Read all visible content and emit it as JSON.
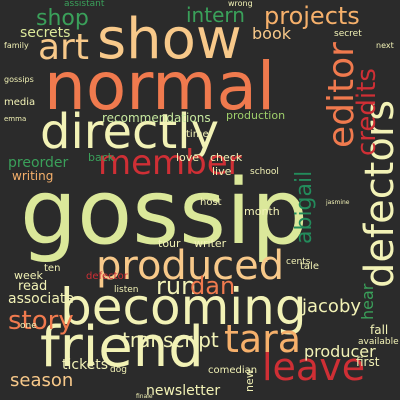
{
  "palette": {
    "background": "#2b2b2b",
    "cream": "#f2f2b6",
    "lime": "#dbe89a",
    "orange": "#f07a4e",
    "red": "#cf2f35",
    "peach": "#f6b06b",
    "light_orange": "#f8c98a",
    "green": "#3aa05a",
    "teal": "#238b5b",
    "olive": "#9ecf6b",
    "mint": "#c7e9a0"
  },
  "words": {
    "gossip": "gossip",
    "normal": "normal",
    "show": "show",
    "directly": "directly",
    "becoming": "becoming",
    "friend": "friend",
    "produced": "produced",
    "defectors": "defectors",
    "editor": "editor",
    "member": "member",
    "tara": "tara",
    "leave": "leave",
    "art": "art",
    "credits": "credits",
    "abigail": "abigail",
    "projects": "projects",
    "story": "story",
    "run": "run",
    "dan": "dan",
    "intern": "intern",
    "shop": "shop",
    "jacoby": "jacoby",
    "transcript": "transcript",
    "producer": "producer",
    "season": "season",
    "associate": "associate",
    "secrets": "secrets",
    "book": "book",
    "recommendations": "recommendations",
    "newsletter": "newsletter",
    "preorder": "preorder",
    "tickets": "tickets",
    "read": "read",
    "hear": "hear",
    "writing": "writing",
    "production": "production",
    "love": "love",
    "check": "check",
    "month": "month",
    "back": "back",
    "host": "host",
    "tour": "tour",
    "writer": "writer",
    "defector": "defector",
    "week": "week",
    "ten": "ten",
    "comedian": "comedian",
    "first": "first",
    "fall": "fall",
    "available": "available",
    "assistant": "assistant",
    "wrong": "wrong",
    "next": "next",
    "live": "live",
    "school": "school",
    "time": "time",
    "media": "media",
    "tale": "tale",
    "cents": "cents",
    "one": "one",
    "listen": "listen",
    "secret": "secret",
    "gossips": "gossips",
    "family": "family",
    "new": "new",
    "dog": "dog",
    "emma": "emma",
    "finale": "finale",
    "jasmine": "jasmine"
  }
}
